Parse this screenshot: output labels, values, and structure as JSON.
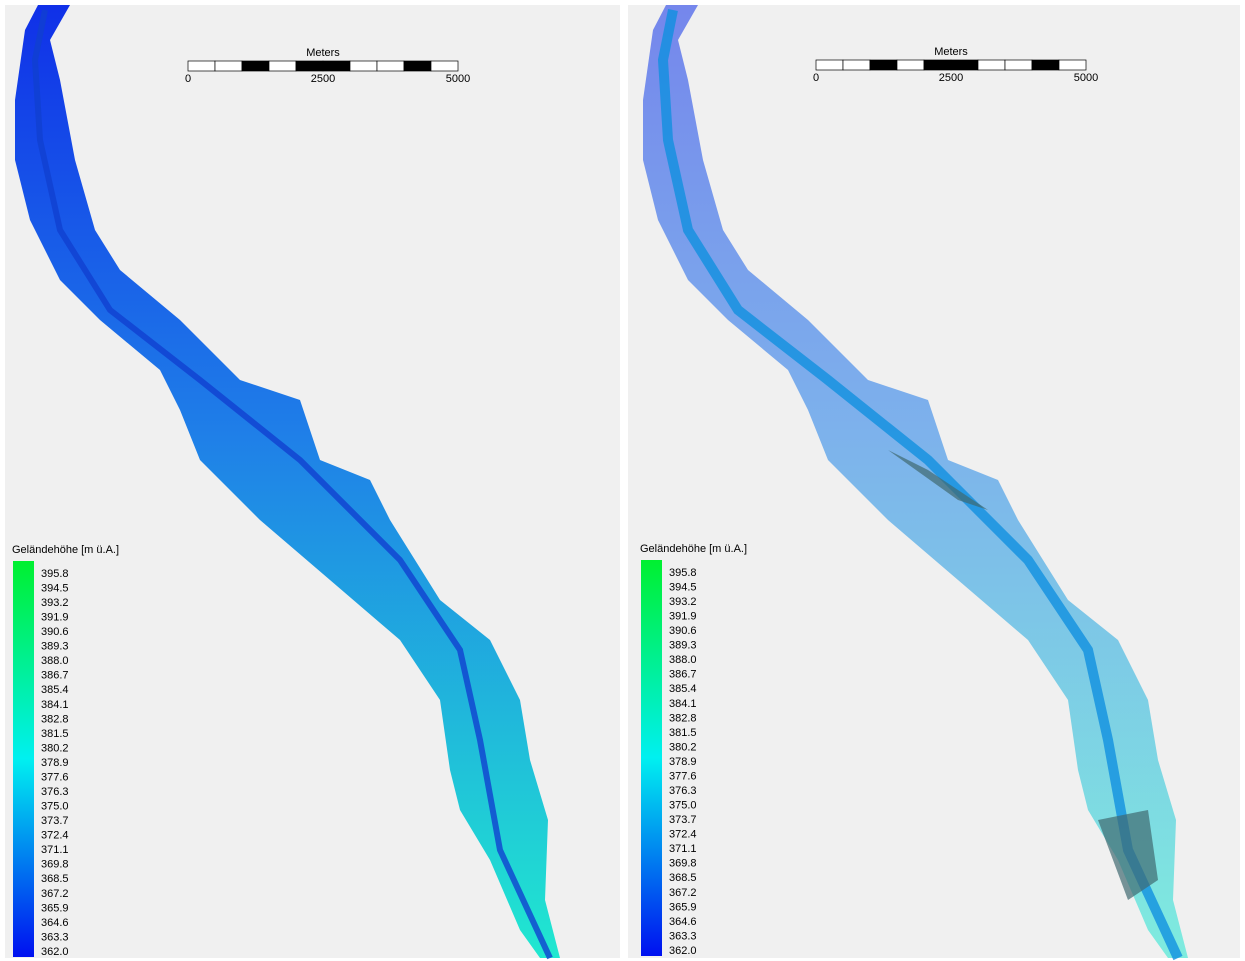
{
  "panels": [
    {
      "scale_bar": {
        "unit": "Meters",
        "labels": [
          "0",
          "2500",
          "5000"
        ]
      },
      "legend": {
        "title": "Geländehöhe [m ü.A.]",
        "labels": [
          "395.8",
          "394.5",
          "393.2",
          "391.9",
          "390.6",
          "389.3",
          "388.0",
          "386.7",
          "385.4",
          "384.1",
          "382.8",
          "381.5",
          "380.2",
          "378.9",
          "377.6",
          "376.3",
          "375.0",
          "373.7",
          "372.4",
          "371.1",
          "369.8",
          "368.5",
          "367.2",
          "365.9",
          "364.6",
          "363.3",
          "362.0"
        ]
      }
    },
    {
      "scale_bar": {
        "unit": "Meters",
        "labels": [
          "0",
          "2500",
          "5000"
        ]
      },
      "legend": {
        "title": "Geländehöhe [m ü.A.]",
        "labels": [
          "395.8",
          "394.5",
          "393.2",
          "391.9",
          "390.6",
          "389.3",
          "388.0",
          "386.7",
          "385.4",
          "384.1",
          "382.8",
          "381.5",
          "380.2",
          "378.9",
          "377.6",
          "376.3",
          "375.0",
          "373.7",
          "372.4",
          "371.1",
          "369.8",
          "368.5",
          "367.2",
          "365.9",
          "364.6",
          "363.3",
          "362.0"
        ]
      }
    }
  ]
}
